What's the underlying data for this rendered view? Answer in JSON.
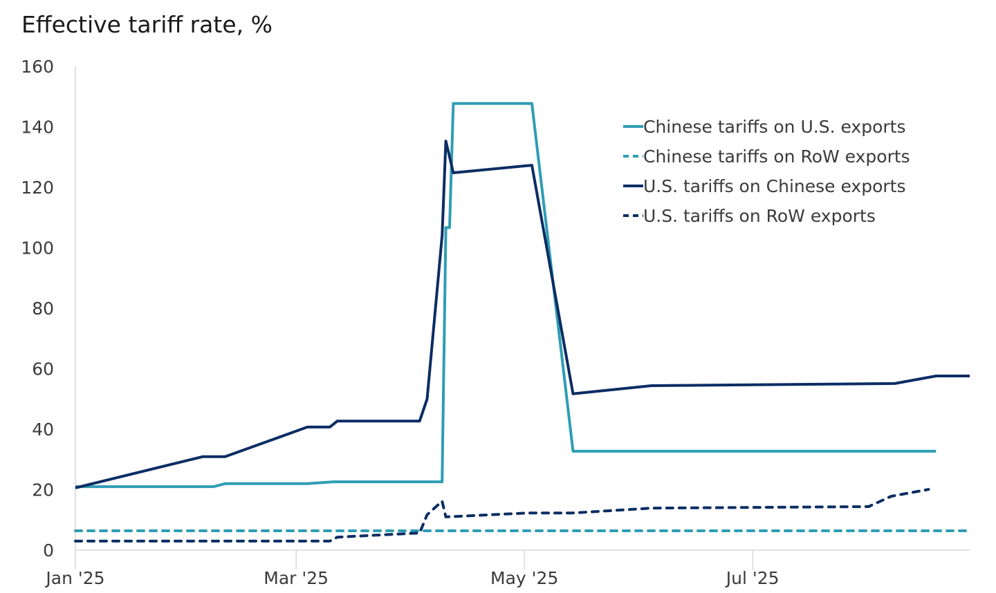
{
  "chart_data": {
    "type": "line",
    "title": "Effective tariff rate, %",
    "xlabel": "",
    "ylabel": "",
    "ylim": [
      0,
      160
    ],
    "yticks": [
      0,
      20,
      40,
      60,
      80,
      100,
      120,
      140,
      160
    ],
    "xlim": [
      "2025-01-01",
      "2025-08-28"
    ],
    "xticks": [
      {
        "date": "2025-01-01",
        "label": "Jan '25"
      },
      {
        "date": "2025-03-01",
        "label": "Mar '25"
      },
      {
        "date": "2025-05-01",
        "label": "May '25"
      },
      {
        "date": "2025-07-01",
        "label": "Jul '25"
      }
    ],
    "grid": false,
    "legend": "top-right",
    "series": [
      {
        "name": "Chinese tariffs on U.S. exports",
        "color": "#2e9db4",
        "dash": false,
        "points": [
          [
            "2025-01-01",
            21.0
          ],
          [
            "2025-02-07",
            21.0
          ],
          [
            "2025-02-10",
            22.0
          ],
          [
            "2025-03-04",
            22.0
          ],
          [
            "2025-03-11",
            22.6
          ],
          [
            "2025-04-09",
            22.6
          ],
          [
            "2025-04-10",
            106.7
          ],
          [
            "2025-04-11",
            106.7
          ],
          [
            "2025-04-12",
            147.7
          ],
          [
            "2025-05-03",
            147.7
          ],
          [
            "2025-05-14",
            32.7
          ],
          [
            "2025-08-19",
            32.7
          ]
        ]
      },
      {
        "name": "Chinese tariffs on RoW exports",
        "color": "#2e9db4",
        "dash": true,
        "points": [
          [
            "2025-01-01",
            6.4
          ],
          [
            "2025-08-28",
            6.4
          ]
        ]
      },
      {
        "name": "U.S. tariffs on Chinese exports",
        "color": "#0b2d63",
        "dash": false,
        "points": [
          [
            "2025-01-01",
            20.6
          ],
          [
            "2025-02-04",
            30.9
          ],
          [
            "2025-02-10",
            30.9
          ],
          [
            "2025-03-04",
            40.7
          ],
          [
            "2025-03-10",
            40.7
          ],
          [
            "2025-03-12",
            42.7
          ],
          [
            "2025-04-03",
            42.7
          ],
          [
            "2025-04-05",
            50.0
          ],
          [
            "2025-04-09",
            104.0
          ],
          [
            "2025-04-10",
            135.3
          ],
          [
            "2025-04-12",
            124.8
          ],
          [
            "2025-05-03",
            127.3
          ],
          [
            "2025-05-14",
            51.7
          ],
          [
            "2025-06-04",
            54.4
          ],
          [
            "2025-08-08",
            55.1
          ],
          [
            "2025-08-19",
            57.6
          ],
          [
            "2025-08-28",
            57.6
          ]
        ]
      },
      {
        "name": "U.S. tariffs on RoW exports",
        "color": "#0b2d63",
        "dash": true,
        "points": [
          [
            "2025-01-01",
            3.0
          ],
          [
            "2025-03-10",
            3.0
          ],
          [
            "2025-03-12",
            4.3
          ],
          [
            "2025-04-03",
            5.7
          ],
          [
            "2025-04-05",
            11.7
          ],
          [
            "2025-04-09",
            16.2
          ],
          [
            "2025-04-10",
            11.0
          ],
          [
            "2025-05-02",
            12.3
          ],
          [
            "2025-05-14",
            12.3
          ],
          [
            "2025-06-04",
            13.9
          ],
          [
            "2025-08-01",
            14.4
          ],
          [
            "2025-08-07",
            17.8
          ],
          [
            "2025-08-17",
            20.1
          ]
        ]
      }
    ]
  }
}
